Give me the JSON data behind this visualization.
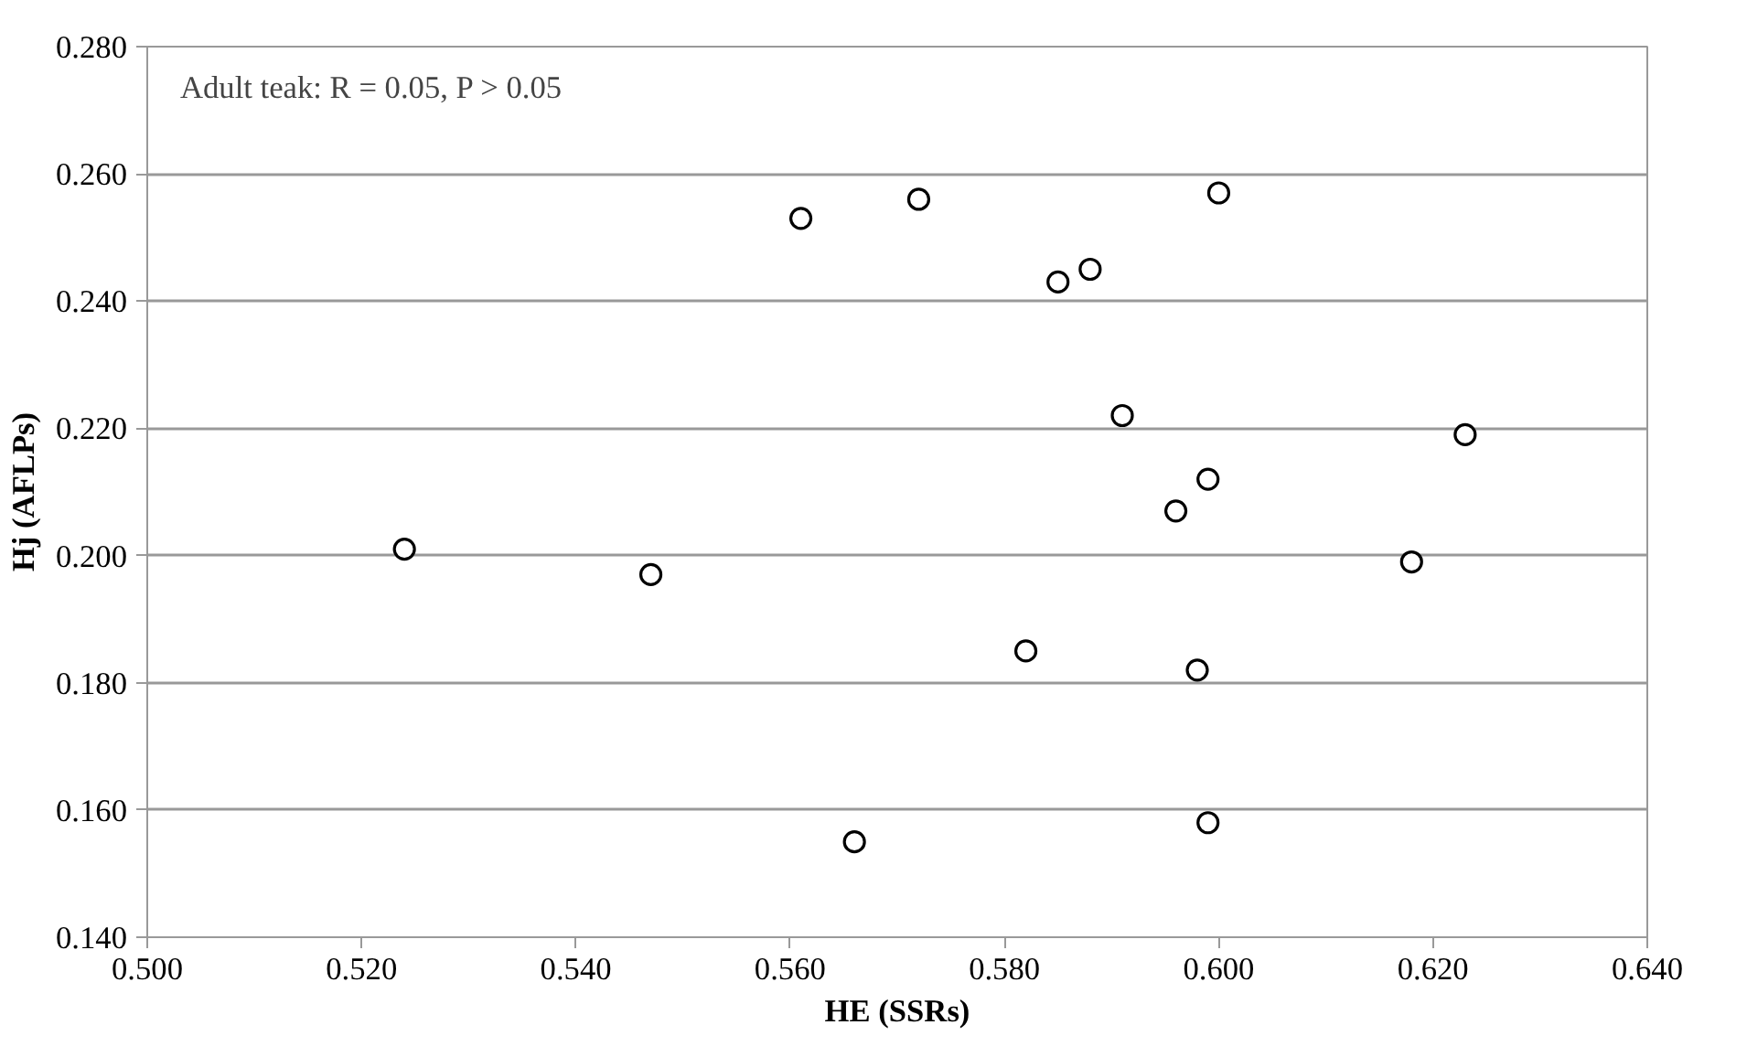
{
  "chart_data": {
    "type": "scatter",
    "xlabel": "HE (SSRs)",
    "ylabel": "Hj (AFLPs)",
    "annotations": [
      "Adult teak: R =  0.05,  P > 0.05"
    ],
    "x": [
      0.524,
      0.547,
      0.561,
      0.572,
      0.566,
      0.6,
      0.585,
      0.588,
      0.591,
      0.623,
      0.599,
      0.596,
      0.618,
      0.582,
      0.598,
      0.599
    ],
    "series": [
      {
        "color": "#000000",
        "values": [
          0.201,
          0.197,
          0.253,
          0.256,
          0.155,
          0.257,
          0.243,
          0.245,
          0.222,
          0.219,
          0.212,
          0.207,
          0.199,
          0.185,
          0.182,
          0.158
        ]
      }
    ],
    "xlim": [
      0.5,
      0.64
    ],
    "ylim": [
      0.14,
      0.28
    ],
    "xticks": [
      {
        "value": 0.5,
        "label": "0.500"
      },
      {
        "value": 0.52,
        "label": "0.520"
      },
      {
        "value": 0.54,
        "label": "0.540"
      },
      {
        "value": 0.56,
        "label": "0.560"
      },
      {
        "value": 0.58,
        "label": "0.580"
      },
      {
        "value": 0.6,
        "label": "0.600"
      },
      {
        "value": 0.62,
        "label": "0.620"
      },
      {
        "value": 0.64,
        "label": "0.640"
      }
    ],
    "yticks": [
      {
        "value": 0.14,
        "label": "0.140"
      },
      {
        "value": 0.16,
        "label": "0.160"
      },
      {
        "value": 0.18,
        "label": "0.180"
      },
      {
        "value": 0.2,
        "label": "0.200"
      },
      {
        "value": 0.22,
        "label": "0.220"
      },
      {
        "value": 0.24,
        "label": "0.240"
      },
      {
        "value": 0.26,
        "label": "0.260"
      },
      {
        "value": 0.28,
        "label": "0.280"
      }
    ],
    "grid": "y",
    "marker": "circle"
  }
}
